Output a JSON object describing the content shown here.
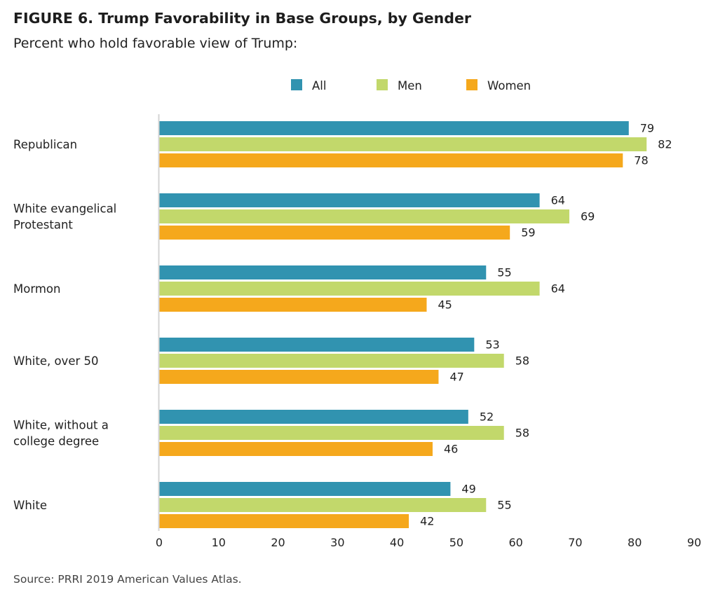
{
  "figure": {
    "title": "FIGURE 6.  Trump Favorability in Base Groups, by Gender",
    "subtitle": "Percent who hold favorable view of Trump:",
    "source": "Source: PRRI 2019 American Values Atlas."
  },
  "chart_data": {
    "type": "bar",
    "orientation": "horizontal",
    "categories": [
      [
        "Republican"
      ],
      [
        "White evangelical",
        "Protestant"
      ],
      [
        "Mormon"
      ],
      [
        "White, over 50"
      ],
      [
        "White, without a",
        "college degree"
      ],
      [
        "White"
      ]
    ],
    "series": [
      {
        "name": "All",
        "color": "#3193b0",
        "values": [
          79,
          64,
          55,
          53,
          52,
          49
        ]
      },
      {
        "name": "Men",
        "color": "#c2d86b",
        "values": [
          82,
          69,
          64,
          58,
          58,
          55
        ]
      },
      {
        "name": "Women",
        "color": "#f5a81c",
        "values": [
          78,
          59,
          45,
          47,
          46,
          42
        ]
      }
    ],
    "xlim": [
      0,
      90
    ],
    "xticks": [
      0,
      10,
      20,
      30,
      40,
      50,
      60,
      70,
      80,
      90
    ],
    "grid": false,
    "legend_position": "top-center",
    "data_labels": true
  }
}
